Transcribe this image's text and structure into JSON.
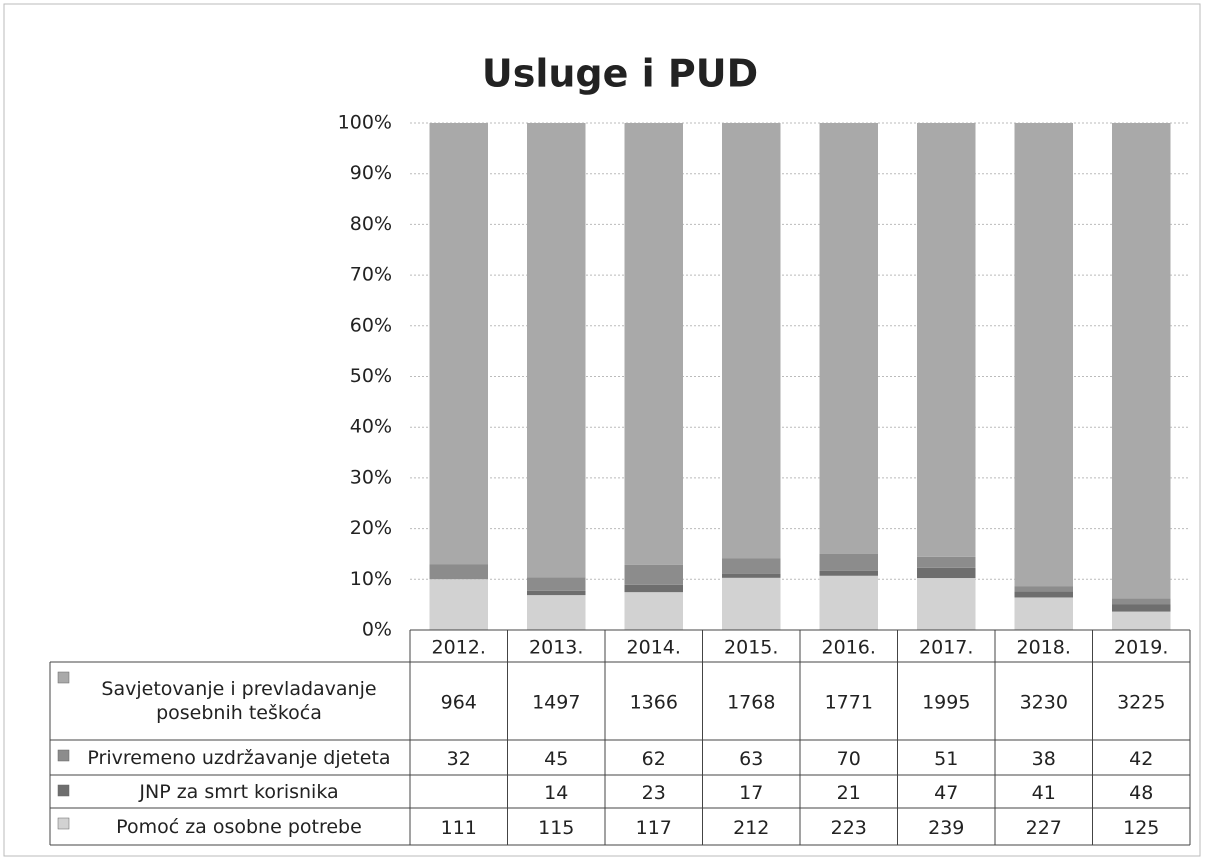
{
  "chart_data": {
    "type": "bar",
    "stacking": "percent",
    "title": "Usluge i PUD",
    "categories": [
      "2012.",
      "2013.",
      "2014.",
      "2015.",
      "2016.",
      "2017.",
      "2018.",
      "2019."
    ],
    "series": [
      {
        "name": "Savjetovanje i prevladavanje posebnih teškoća",
        "color": "#a9a9a9",
        "values": [
          964,
          1497,
          1366,
          1768,
          1771,
          1995,
          3230,
          3225
        ]
      },
      {
        "name": "Privremeno uzdržavanje djeteta",
        "color": "#8c8c8c",
        "values": [
          32,
          45,
          62,
          63,
          70,
          51,
          38,
          42
        ]
      },
      {
        "name": "JNP za smrt korisnika",
        "color": "#6e6e6e",
        "values": [
          null,
          14,
          23,
          17,
          21,
          47,
          41,
          48
        ]
      },
      {
        "name": "Pomoć za osobne potrebe",
        "color": "#d2d2d2",
        "values": [
          111,
          115,
          117,
          212,
          223,
          239,
          227,
          125
        ]
      }
    ],
    "ylim": [
      0,
      100
    ],
    "yticks": [
      {
        "value": 0,
        "label": "0%"
      },
      {
        "value": 10,
        "label": "10%"
      },
      {
        "value": 20,
        "label": "20%"
      },
      {
        "value": 30,
        "label": "30%"
      },
      {
        "value": 40,
        "label": "40%"
      },
      {
        "value": 50,
        "label": "50%"
      },
      {
        "value": 60,
        "label": "60%"
      },
      {
        "value": 70,
        "label": "70%"
      },
      {
        "value": 80,
        "label": "80%"
      },
      {
        "value": 90,
        "label": "90%"
      },
      {
        "value": 100,
        "label": "100%"
      }
    ],
    "grid": true
  }
}
